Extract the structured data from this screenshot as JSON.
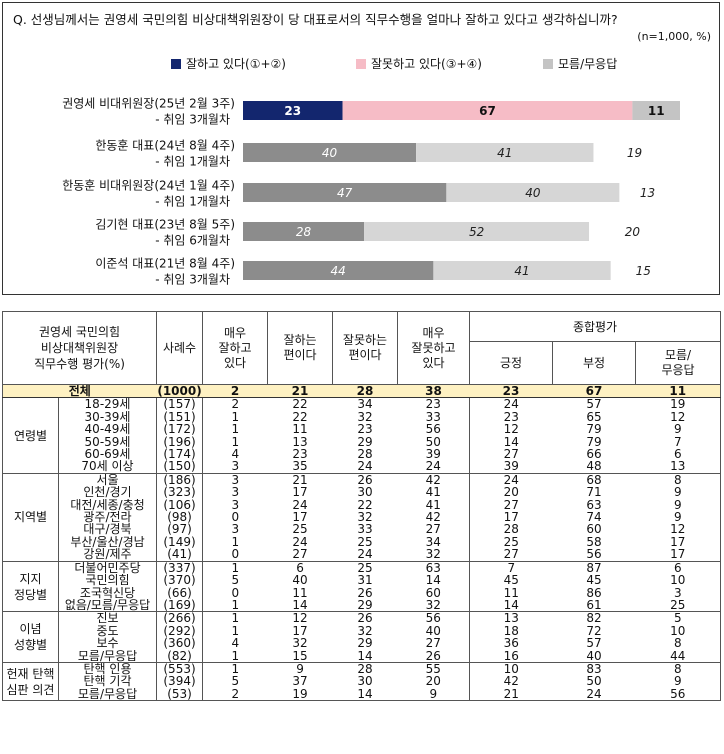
{
  "question": "Q. 선생님께서는 권영세 국민의힘 비상대책위원장이 당 대표로서의 직무수행을 얼마나 잘하고 있다고 생각하십니까?",
  "sample_note": "(n=1,000, %)",
  "chart_data": {
    "type": "bar",
    "stacked": true,
    "orientation": "horizontal",
    "title": "Q. 선생님께서는 권영세 국민의힘 비상대책위원장이 당 대표로서의 직무수행을 얼마나 잘하고 있다고 생각하십니까?",
    "legend": [
      {
        "name": "잘하고 있다(①+②)",
        "color": "#13266e"
      },
      {
        "name": "잘못하고 있다(③+④)",
        "color": "#f6bcc6"
      },
      {
        "name": "모름/무응답",
        "color": "#c4c4c4"
      }
    ],
    "legend_position": "top",
    "categories": [
      {
        "line1": "권영세 비대위원장(25년 2월 3주)",
        "line2": "- 취임 3개월차"
      },
      {
        "line1": "한동훈 대표(24년 8월 4주)",
        "line2": "- 취임 1개월차"
      },
      {
        "line1": "한동훈 비대위원장(24년 1월 4주)",
        "line2": "- 취임 1개월차"
      },
      {
        "line1": "김기현 대표(23년 8월 5주)",
        "line2": "- 취임 6개월차"
      },
      {
        "line1": "이준석 대표(21년 8월 4주)",
        "line2": "- 취임 3개월차"
      }
    ],
    "series": [
      {
        "name": "잘하고 있다",
        "values": [
          23,
          40,
          47,
          28,
          44
        ]
      },
      {
        "name": "잘못하고 있다",
        "values": [
          67,
          41,
          40,
          52,
          41
        ]
      },
      {
        "name": "모름/무응답",
        "values": [
          11,
          19,
          13,
          20,
          15
        ]
      }
    ],
    "bar_colors": [
      [
        "#13266e",
        "#f6bcc6",
        "#c4c4c4"
      ],
      [
        "#8c8c8c",
        "#d6d6d6",
        "#ffffff"
      ],
      [
        "#8c8c8c",
        "#d6d6d6",
        "#ffffff"
      ],
      [
        "#8c8c8c",
        "#d6d6d6",
        "#ffffff"
      ],
      [
        "#8c8c8c",
        "#d6d6d6",
        "#ffffff"
      ]
    ],
    "xlim": [
      0,
      101
    ]
  },
  "table": {
    "header": {
      "title": "권영세 국민의힘 비상대책위원장 직무수행 평가(%)",
      "title_lines": [
        "권영세 국민의힘",
        "비상대책위원장",
        "직무수행 평가(%)"
      ],
      "cases": "사례수",
      "c1": [
        "매우",
        "잘하고",
        "있다"
      ],
      "c2": [
        "잘하는",
        "편이다"
      ],
      "c3": [
        "잘못하는",
        "편이다"
      ],
      "c4": [
        "매우",
        "잘못하고",
        "있다"
      ],
      "overall": "종합평가",
      "pos": "긍정",
      "neg": "부정",
      "dk": [
        "모름/",
        "무응답"
      ]
    },
    "total": {
      "label": "전체",
      "n": "(1000)",
      "v": [
        "2",
        "21",
        "28",
        "38",
        "23",
        "67",
        "11"
      ]
    },
    "groups": [
      {
        "name": [
          "연령별"
        ],
        "rows": [
          {
            "label": "18-29세",
            "n": "(157)",
            "v": [
              "2",
              "22",
              "34",
              "23",
              "24",
              "57",
              "19"
            ]
          },
          {
            "label": "30-39세",
            "n": "(151)",
            "v": [
              "1",
              "22",
              "32",
              "33",
              "23",
              "65",
              "12"
            ]
          },
          {
            "label": "40-49세",
            "n": "(172)",
            "v": [
              "1",
              "11",
              "23",
              "56",
              "12",
              "79",
              "9"
            ]
          },
          {
            "label": "50-59세",
            "n": "(196)",
            "v": [
              "1",
              "13",
              "29",
              "50",
              "14",
              "79",
              "7"
            ]
          },
          {
            "label": "60-69세",
            "n": "(174)",
            "v": [
              "4",
              "23",
              "28",
              "39",
              "27",
              "66",
              "6"
            ]
          },
          {
            "label": "70세 이상",
            "n": "(150)",
            "v": [
              "3",
              "35",
              "24",
              "24",
              "39",
              "48",
              "13"
            ]
          }
        ]
      },
      {
        "name": [
          "지역별"
        ],
        "rows": [
          {
            "label": "서울",
            "n": "(186)",
            "v": [
              "3",
              "21",
              "26",
              "42",
              "24",
              "68",
              "8"
            ]
          },
          {
            "label": "인천/경기",
            "n": "(323)",
            "v": [
              "3",
              "17",
              "30",
              "41",
              "20",
              "71",
              "9"
            ]
          },
          {
            "label": "대전/세종/충청",
            "n": "(106)",
            "v": [
              "3",
              "24",
              "22",
              "41",
              "27",
              "63",
              "9"
            ]
          },
          {
            "label": "광주/전라",
            "n": "(98)",
            "v": [
              "0",
              "17",
              "32",
              "42",
              "17",
              "74",
              "9"
            ]
          },
          {
            "label": "대구/경북",
            "n": "(97)",
            "v": [
              "3",
              "25",
              "33",
              "27",
              "28",
              "60",
              "12"
            ]
          },
          {
            "label": "부산/울산/경남",
            "n": "(149)",
            "v": [
              "1",
              "24",
              "25",
              "34",
              "25",
              "58",
              "17"
            ]
          },
          {
            "label": "강원/제주",
            "n": "(41)",
            "v": [
              "0",
              "27",
              "24",
              "32",
              "27",
              "56",
              "17"
            ]
          }
        ]
      },
      {
        "name": [
          "지지",
          "정당별"
        ],
        "rows": [
          {
            "label": "더불어민주당",
            "n": "(337)",
            "v": [
              "1",
              "6",
              "25",
              "63",
              "7",
              "87",
              "6"
            ]
          },
          {
            "label": "국민의힘",
            "n": "(370)",
            "v": [
              "5",
              "40",
              "31",
              "14",
              "45",
              "45",
              "10"
            ]
          },
          {
            "label": "조국혁신당",
            "n": "(66)",
            "v": [
              "0",
              "11",
              "26",
              "60",
              "11",
              "86",
              "3"
            ]
          },
          {
            "label": "없음/모름/무응답",
            "n": "(169)",
            "v": [
              "1",
              "14",
              "29",
              "32",
              "14",
              "61",
              "25"
            ]
          }
        ]
      },
      {
        "name": [
          "이념",
          "성향별"
        ],
        "rows": [
          {
            "label": "진보",
            "n": "(266)",
            "v": [
              "1",
              "12",
              "26",
              "56",
              "13",
              "82",
              "5"
            ]
          },
          {
            "label": "중도",
            "n": "(292)",
            "v": [
              "1",
              "17",
              "32",
              "40",
              "18",
              "72",
              "10"
            ]
          },
          {
            "label": "보수",
            "n": "(360)",
            "v": [
              "4",
              "32",
              "29",
              "27",
              "36",
              "57",
              "8"
            ]
          },
          {
            "label": "모름/무응답",
            "n": "(82)",
            "v": [
              "1",
              "15",
              "14",
              "26",
              "16",
              "40",
              "44"
            ]
          }
        ]
      },
      {
        "name": [
          "헌재 탄핵",
          "심판 의견"
        ],
        "rows": [
          {
            "label": "탄핵 인용",
            "n": "(553)",
            "v": [
              "1",
              "9",
              "28",
              "55",
              "10",
              "83",
              "8"
            ]
          },
          {
            "label": "탄핵 기각",
            "n": "(394)",
            "v": [
              "5",
              "37",
              "30",
              "20",
              "42",
              "50",
              "9"
            ]
          },
          {
            "label": "모름/무응답",
            "n": "(53)",
            "v": [
              "2",
              "19",
              "14",
              "9",
              "21",
              "24",
              "56"
            ]
          }
        ]
      }
    ]
  }
}
